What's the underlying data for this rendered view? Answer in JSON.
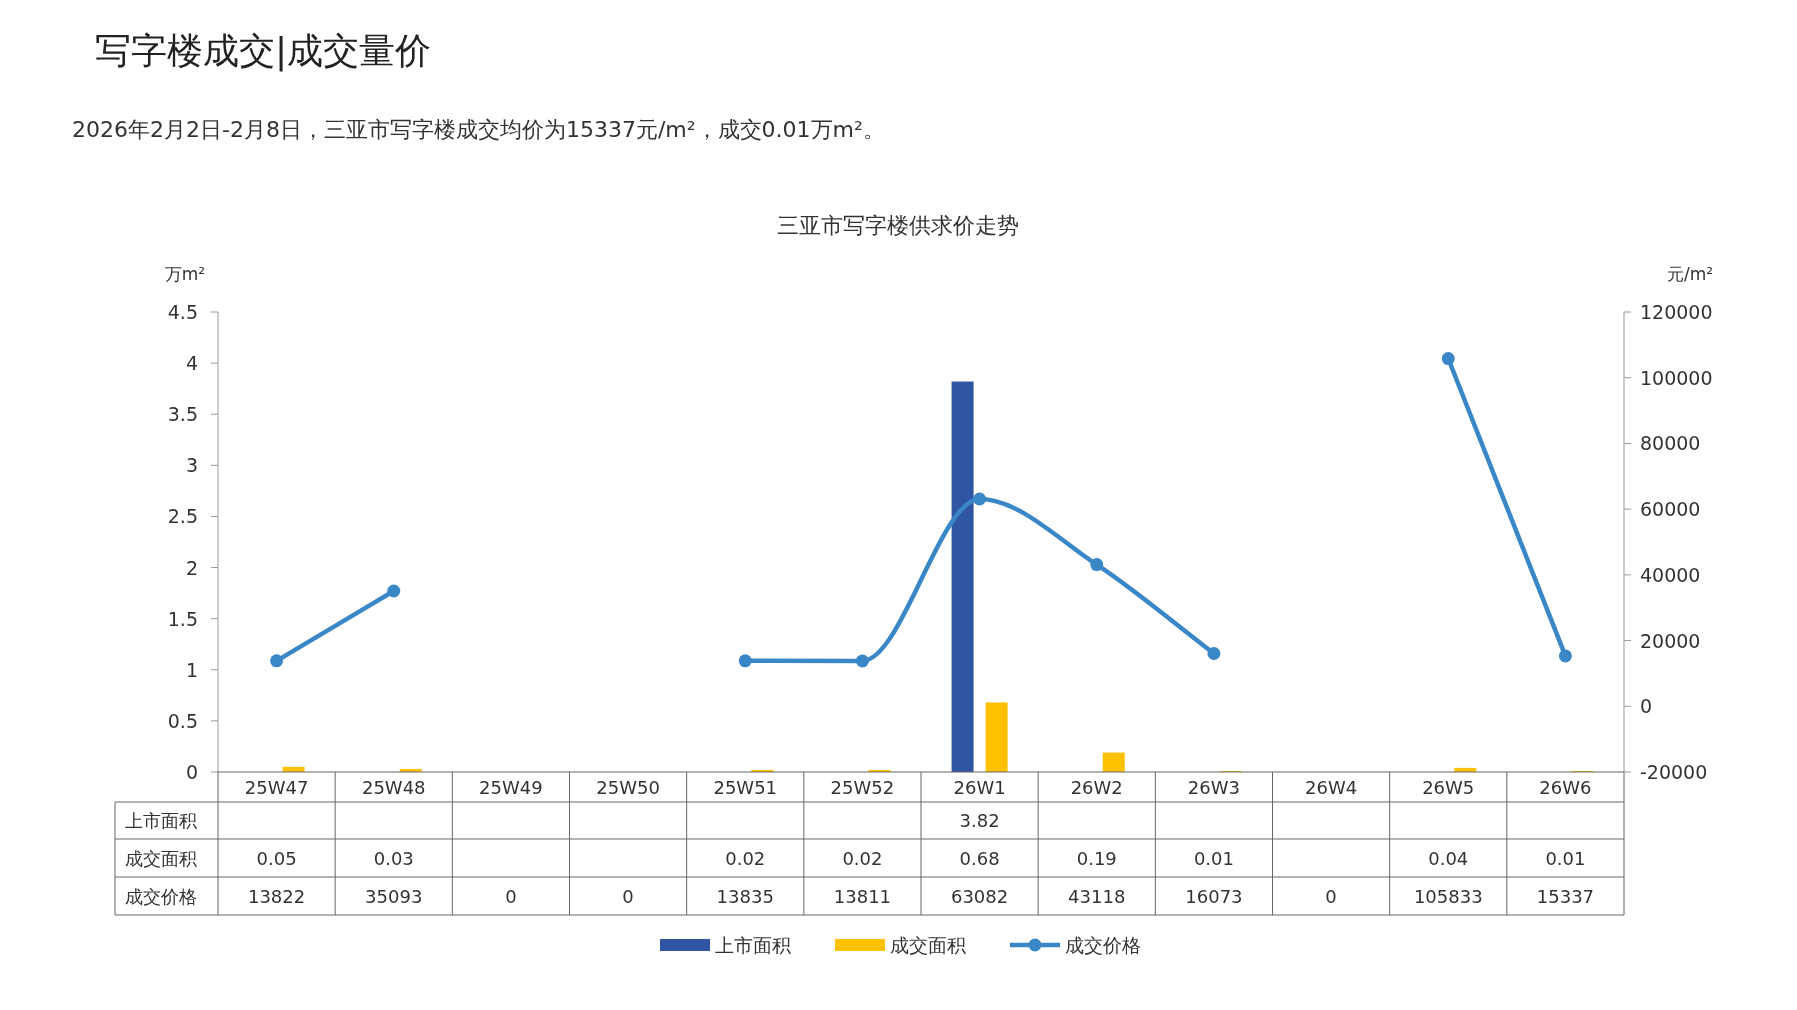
{
  "chart_data": {
    "type": "bar",
    "title": "三亚市写字楼供求价走势",
    "subtitle": "2026年2月2日-2月8日，三亚市写字楼成交均价为15337元/m²，成交0.01万m²。",
    "annotations": [
      "写字楼成交|成交量价"
    ],
    "ylabel": "万m²",
    "y2label": "元/m²",
    "categories": [
      "25W47",
      "25W48",
      "25W49",
      "25W50",
      "25W51",
      "25W52",
      "26W1",
      "26W2",
      "26W3",
      "26W4",
      "26W5",
      "26W6"
    ],
    "series": [
      {
        "name": "上市面积",
        "color": "#2f55a4",
        "values": [
          null,
          null,
          null,
          null,
          null,
          null,
          3.82,
          null,
          null,
          null,
          null,
          null
        ],
        "value_labels": [
          null,
          null,
          null,
          null,
          null,
          null,
          "3.82",
          null,
          null,
          null,
          null,
          null
        ]
      },
      {
        "name": "成交面积",
        "color": "#ffc000",
        "values": [
          0.05,
          0.03,
          null,
          null,
          0.02,
          0.02,
          0.68,
          0.19,
          0.01,
          null,
          0.04,
          0.01
        ],
        "value_labels": [
          "0.05",
          "0.03",
          null,
          null,
          "0.02",
          "0.02",
          "0.68",
          "0.19",
          "0.01",
          null,
          "0.04",
          "0.01"
        ]
      },
      {
        "name": "成交价格",
        "color": "#3a87c8",
        "type": "line",
        "axis": "y2",
        "marker": "circle",
        "values": [
          13822,
          35093,
          null,
          null,
          13835,
          13811,
          63082,
          43118,
          16073,
          null,
          105833,
          15337
        ],
        "value_labels": [
          "13822",
          "35093",
          "0",
          "0",
          "13835",
          "13811",
          "63082",
          "43118",
          "16073",
          "0",
          "105833",
          "15337"
        ]
      }
    ],
    "ylim": [
      0,
      4.5
    ],
    "yticks": [
      0,
      0.5,
      1,
      1.5,
      2,
      2.5,
      3,
      3.5,
      4,
      4.5
    ],
    "y2lim": [
      -20000,
      120000
    ],
    "y2ticks": [
      -20000,
      0,
      20000,
      40000,
      60000,
      80000,
      100000,
      120000
    ],
    "data_labels": true,
    "grid": false,
    "legend": "bottom"
  }
}
